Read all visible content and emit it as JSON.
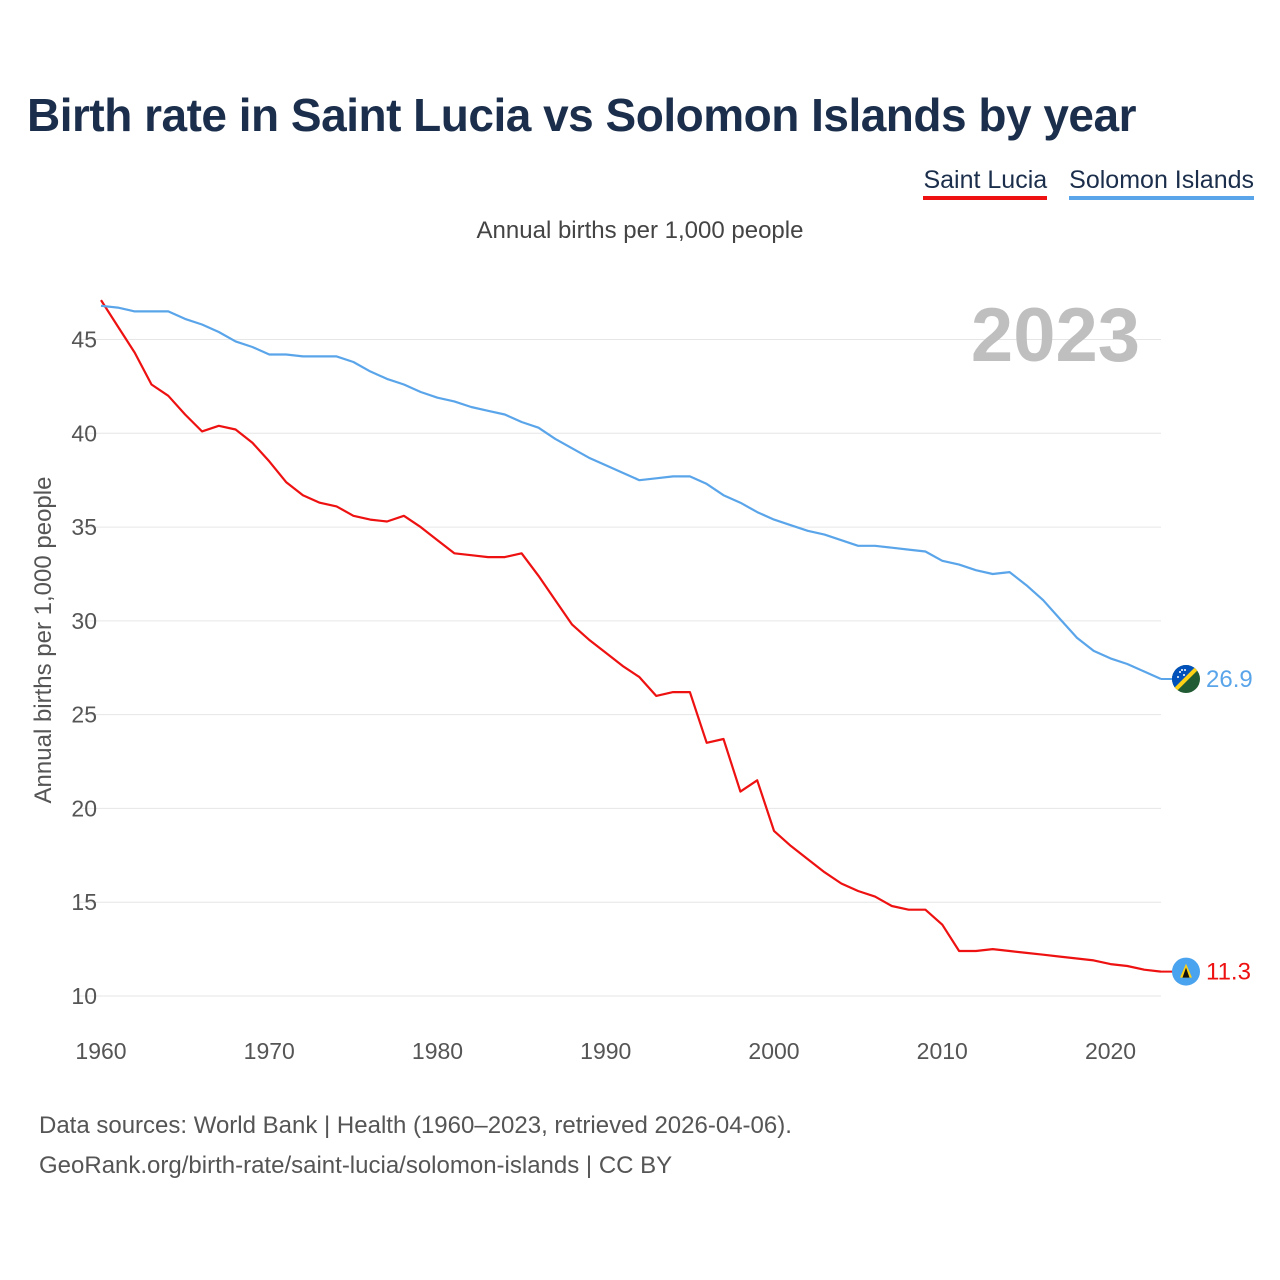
{
  "title": "Birth rate in Saint Lucia vs Solomon Islands by year",
  "subtitle": "Annual births per 1,000 people",
  "year_label": "2023",
  "footer": {
    "line1": "Data sources: World Bank | Health (1960–2023, retrieved 2026-04-06).",
    "line2": "GeoRank.org/birth-rate/saint-lucia/solomon-islands | CC BY"
  },
  "legend": [
    {
      "name": "Saint Lucia",
      "color": "#ee1111"
    },
    {
      "name": "Solomon Islands",
      "color": "#5aa5ea"
    }
  ],
  "chart_data": {
    "type": "line",
    "title": "Birth rate in Saint Lucia vs Solomon Islands by year",
    "xlabel": "",
    "ylabel": "Annual births per 1,000 people",
    "xlim": [
      1960,
      2023
    ],
    "ylim": [
      10,
      47
    ],
    "x_ticks": [
      1960,
      1970,
      1980,
      1990,
      2000,
      2010,
      2020
    ],
    "y_ticks": [
      10,
      15,
      20,
      25,
      30,
      35,
      40,
      45
    ],
    "grid": true,
    "x": [
      1960,
      1961,
      1962,
      1963,
      1964,
      1965,
      1966,
      1967,
      1968,
      1969,
      1970,
      1971,
      1972,
      1973,
      1974,
      1975,
      1976,
      1977,
      1978,
      1979,
      1980,
      1981,
      1982,
      1983,
      1984,
      1985,
      1986,
      1987,
      1988,
      1989,
      1990,
      1991,
      1992,
      1993,
      1994,
      1995,
      1996,
      1997,
      1998,
      1999,
      2000,
      2001,
      2002,
      2003,
      2004,
      2005,
      2006,
      2007,
      2008,
      2009,
      2010,
      2011,
      2012,
      2013,
      2014,
      2015,
      2016,
      2017,
      2018,
      2019,
      2020,
      2021,
      2022,
      2023
    ],
    "series": [
      {
        "name": "Saint Lucia",
        "color": "#ee1111",
        "end_label": "11.3",
        "values": [
          47.1,
          45.7,
          44.3,
          42.6,
          42.0,
          41.0,
          40.1,
          40.4,
          40.2,
          39.5,
          38.5,
          37.4,
          36.7,
          36.3,
          36.1,
          35.6,
          35.4,
          35.3,
          35.6,
          35.0,
          34.3,
          33.6,
          33.5,
          33.4,
          33.4,
          33.6,
          32.4,
          31.1,
          29.8,
          29.0,
          28.3,
          27.6,
          27.0,
          26.0,
          26.2,
          26.2,
          23.5,
          23.7,
          20.9,
          21.5,
          18.8,
          18.0,
          17.3,
          16.6,
          16.0,
          15.6,
          15.3,
          14.8,
          14.6,
          14.6,
          13.8,
          12.4,
          12.4,
          12.5,
          12.4,
          12.3,
          12.2,
          12.1,
          12.0,
          11.9,
          11.7,
          11.6,
          11.4,
          11.3
        ]
      },
      {
        "name": "Solomon Islands",
        "color": "#5aa5ea",
        "end_label": "26.9",
        "values": [
          46.8,
          46.7,
          46.5,
          46.5,
          46.5,
          46.1,
          45.8,
          45.4,
          44.9,
          44.6,
          44.2,
          44.2,
          44.1,
          44.1,
          44.1,
          43.8,
          43.3,
          42.9,
          42.6,
          42.2,
          41.9,
          41.7,
          41.4,
          41.2,
          41.0,
          40.6,
          40.3,
          39.7,
          39.2,
          38.7,
          38.3,
          37.9,
          37.5,
          37.6,
          37.7,
          37.7,
          37.3,
          36.7,
          36.3,
          35.8,
          35.4,
          35.1,
          34.8,
          34.6,
          34.3,
          34.0,
          34.0,
          33.9,
          33.8,
          33.7,
          33.2,
          33.0,
          32.7,
          32.5,
          32.6,
          31.9,
          31.1,
          30.1,
          29.1,
          28.4,
          28.0,
          27.7,
          27.3,
          26.9
        ]
      }
    ]
  }
}
